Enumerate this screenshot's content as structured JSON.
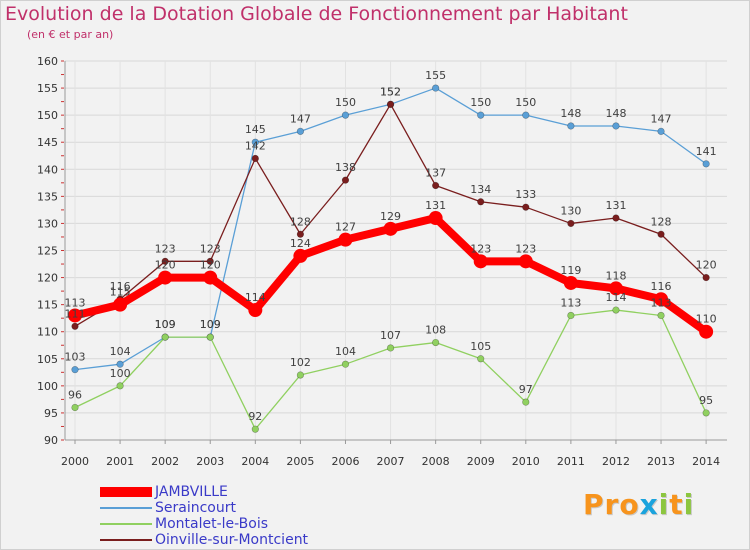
{
  "header": {
    "title": "Evolution de la Dotation Globale de Fonctionnement par Habitant",
    "subtitle": "(en € et par an)"
  },
  "logo": {
    "text": "Proxiti"
  },
  "colors": {
    "title": "#c0306a",
    "axis_text": "#333333",
    "grid": "#d8d8d8",
    "legend_text": "#3a3ac8"
  },
  "chart_data": {
    "type": "line",
    "x": [
      2000,
      2001,
      2002,
      2003,
      2004,
      2005,
      2006,
      2007,
      2008,
      2009,
      2010,
      2011,
      2012,
      2013,
      2014
    ],
    "ylim": [
      90,
      160
    ],
    "yticks": [
      90,
      95,
      100,
      105,
      110,
      115,
      120,
      125,
      130,
      135,
      140,
      145,
      150,
      155,
      160
    ],
    "grid": true,
    "legend_position": "bottom-left",
    "series": [
      {
        "name": "JAMBVILLE",
        "color": "#ff0000",
        "values": [
          113,
          115,
          120,
          120,
          114,
          124,
          127,
          129,
          131,
          123,
          123,
          119,
          118,
          116,
          110
        ],
        "labels": [
          "113",
          "115",
          "120",
          "120",
          "114",
          "124",
          "127",
          "129",
          "131",
          "123",
          "123",
          "119",
          "118",
          "116",
          "110"
        ]
      },
      {
        "name": "Seraincourt",
        "color": "#5a9fd6",
        "values": [
          103,
          104,
          109,
          109,
          145,
          147,
          150,
          152,
          155,
          150,
          150,
          148,
          148,
          147,
          141
        ],
        "labels": [
          "103",
          "104",
          "109",
          "109",
          "145",
          "147",
          "150",
          "152",
          "155",
          "150",
          "150",
          "148",
          "148",
          "147",
          "141"
        ]
      },
      {
        "name": "Montalet-le-Bois",
        "color": "#90d060",
        "values": [
          96,
          100,
          109,
          109,
          92,
          102,
          104,
          107,
          108,
          105,
          97,
          113,
          114,
          113,
          95
        ],
        "labels": [
          "96",
          "100",
          "109",
          "109",
          "92",
          "102",
          "104",
          "107",
          "108",
          "105",
          "97",
          "113",
          "114",
          "113",
          "95"
        ]
      },
      {
        "name": "Oinville-sur-Montcient",
        "color": "#7a1e1e",
        "values": [
          111,
          116,
          123,
          123,
          142,
          128,
          138,
          152,
          137,
          134,
          133,
          130,
          131,
          128,
          120
        ],
        "labels": [
          "111",
          "116",
          "123",
          "123",
          "142",
          "128",
          "138",
          "152",
          "137",
          "134",
          "133",
          "130",
          "131",
          "128",
          "120"
        ]
      }
    ]
  }
}
